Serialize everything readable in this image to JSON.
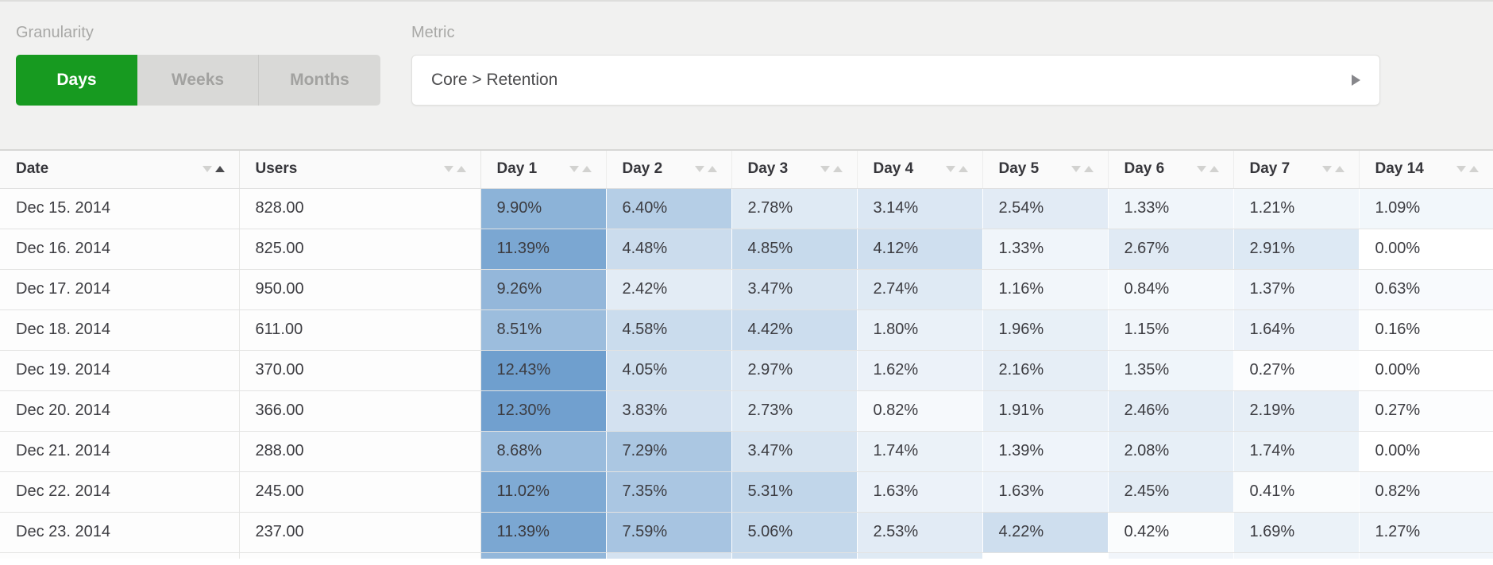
{
  "toolbar": {
    "granularity": {
      "label": "Granularity",
      "options": [
        "Days",
        "Weeks",
        "Months"
      ],
      "selected": "Days"
    },
    "metric": {
      "label": "Metric",
      "value": "Core > Retention"
    }
  },
  "colors": {
    "accent_green": "#179a20",
    "heat_base": "#6f9fce",
    "toolbar_bg": "#f1f1f0",
    "header_bg": "#fafafa"
  },
  "table": {
    "heat": {
      "base_color": "#6f9fce",
      "max_value": 12.43
    },
    "columns": [
      {
        "label": "Date",
        "key": "date",
        "sort": "asc"
      },
      {
        "label": "Users",
        "key": "users",
        "sort": "none"
      },
      {
        "label": "Day 1",
        "key": "day1",
        "sort": "none"
      },
      {
        "label": "Day 2",
        "key": "day2",
        "sort": "none"
      },
      {
        "label": "Day 3",
        "key": "day3",
        "sort": "none"
      },
      {
        "label": "Day 4",
        "key": "day4",
        "sort": "none"
      },
      {
        "label": "Day 5",
        "key": "day5",
        "sort": "none"
      },
      {
        "label": "Day 6",
        "key": "day6",
        "sort": "none"
      },
      {
        "label": "Day 7",
        "key": "day7",
        "sort": "none"
      },
      {
        "label": "Day 14",
        "key": "day14",
        "sort": "none"
      }
    ],
    "rows": [
      {
        "date": "Dec 15. 2014",
        "users": "828.00",
        "percents": [
          9.9,
          6.4,
          2.78,
          3.14,
          2.54,
          1.33,
          1.21,
          1.09
        ]
      },
      {
        "date": "Dec 16. 2014",
        "users": "825.00",
        "percents": [
          11.39,
          4.48,
          4.85,
          4.12,
          1.33,
          2.67,
          2.91,
          0.0
        ]
      },
      {
        "date": "Dec 17. 2014",
        "users": "950.00",
        "percents": [
          9.26,
          2.42,
          3.47,
          2.74,
          1.16,
          0.84,
          1.37,
          0.63
        ]
      },
      {
        "date": "Dec 18. 2014",
        "users": "611.00",
        "percents": [
          8.51,
          4.58,
          4.42,
          1.8,
          1.96,
          1.15,
          1.64,
          0.16
        ]
      },
      {
        "date": "Dec 19. 2014",
        "users": "370.00",
        "percents": [
          12.43,
          4.05,
          2.97,
          1.62,
          2.16,
          1.35,
          0.27,
          0.0
        ]
      },
      {
        "date": "Dec 20. 2014",
        "users": "366.00",
        "percents": [
          12.3,
          3.83,
          2.73,
          0.82,
          1.91,
          2.46,
          2.19,
          0.27
        ]
      },
      {
        "date": "Dec 21. 2014",
        "users": "288.00",
        "percents": [
          8.68,
          7.29,
          3.47,
          1.74,
          1.39,
          2.08,
          1.74,
          0.0
        ]
      },
      {
        "date": "Dec 22. 2014",
        "users": "245.00",
        "percents": [
          11.02,
          7.35,
          5.31,
          1.63,
          1.63,
          2.45,
          0.41,
          0.82
        ]
      },
      {
        "date": "Dec 23. 2014",
        "users": "237.00",
        "percents": [
          11.39,
          7.59,
          5.06,
          2.53,
          4.22,
          0.42,
          1.69,
          1.27
        ]
      }
    ],
    "partial_next_row_shades": [
      0.75,
      0.3,
      0.36,
      0.22,
      0,
      0.1,
      0.08,
      0.1
    ]
  }
}
